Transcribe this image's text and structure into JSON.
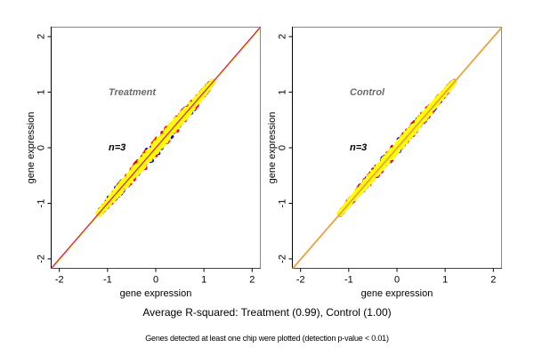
{
  "chart_data": [
    {
      "type": "scatter",
      "title": "Treatment",
      "annotation": "n=3",
      "xlabel": "gene expression",
      "ylabel": "gene expression",
      "xlim": [
        -2.17,
        2.17
      ],
      "ylim": [
        -2.17,
        2.17
      ],
      "xticks": [
        "-2",
        "-1",
        "0",
        "1",
        "2"
      ],
      "yticks": [
        "-2",
        "-1",
        "0",
        "1",
        "2"
      ],
      "tick_values": [
        -2,
        -1,
        0,
        1,
        2
      ],
      "reference_line": {
        "slope": 1,
        "intercept": 0
      },
      "point_cloud": {
        "x_range": [
          -1.2,
          1.2
        ],
        "spread": 0.09,
        "seed": 7
      },
      "series_colors": {
        "outer": "#ff0000",
        "edge": "#0000ff",
        "core": "#ffff00"
      },
      "line_colors": [
        "#cc0066",
        "#ffcc00"
      ]
    },
    {
      "type": "scatter",
      "title": "Control",
      "annotation": "n=3",
      "xlabel": "gene expression",
      "ylabel": "gene expression",
      "xlim": [
        -2.17,
        2.17
      ],
      "ylim": [
        -2.17,
        2.17
      ],
      "xticks": [
        "-2",
        "-1",
        "0",
        "1",
        "2"
      ],
      "yticks": [
        "-2",
        "-1",
        "0",
        "1",
        "2"
      ],
      "tick_values": [
        -2,
        -1,
        0,
        1,
        2
      ],
      "reference_line": {
        "slope": 1,
        "intercept": 0
      },
      "point_cloud": {
        "x_range": [
          -1.2,
          1.2
        ],
        "spread": 0.07,
        "seed": 13
      },
      "series_colors": {
        "outer": "#ff0000",
        "edge": "#0000ff",
        "core": "#ffff00"
      },
      "line_colors": [
        "#e8a040",
        "#e8a040"
      ]
    }
  ],
  "captions": {
    "summary": "Average R-squared: Treatment (0.99), Control (1.00)",
    "footnote": "Genes detected at least one chip were plotted (detection p-value < 0.01)"
  }
}
